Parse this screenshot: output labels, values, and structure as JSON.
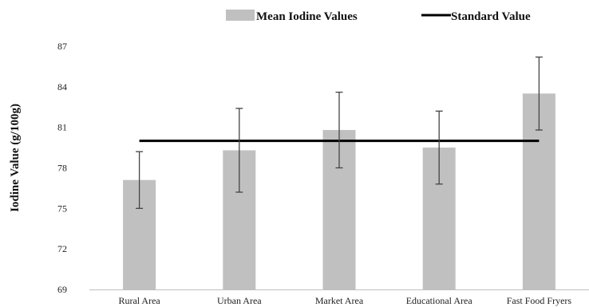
{
  "chart_data": {
    "type": "bar",
    "categories": [
      "Rural Area",
      "Urban Area",
      "Market Area",
      "Educational Area",
      "Fast Food Fryers"
    ],
    "series": [
      {
        "name": "Mean Iodine Values",
        "type": "bar",
        "values": [
          77.1,
          79.3,
          80.8,
          79.5,
          83.5
        ],
        "error": [
          2.1,
          3.1,
          2.8,
          2.7,
          2.7
        ],
        "color": "#c0c0c0"
      },
      {
        "name": "Standard Value",
        "type": "line",
        "values": [
          80,
          80,
          80,
          80,
          80
        ],
        "color": "#000000"
      }
    ],
    "xlabel": "",
    "ylabel": "Iodine Value (g/100g)",
    "ylim": [
      69,
      87
    ],
    "yticks": [
      "69",
      "72",
      "75",
      "78",
      "81",
      "84",
      "87"
    ],
    "grid": false,
    "legend_position": "top"
  }
}
